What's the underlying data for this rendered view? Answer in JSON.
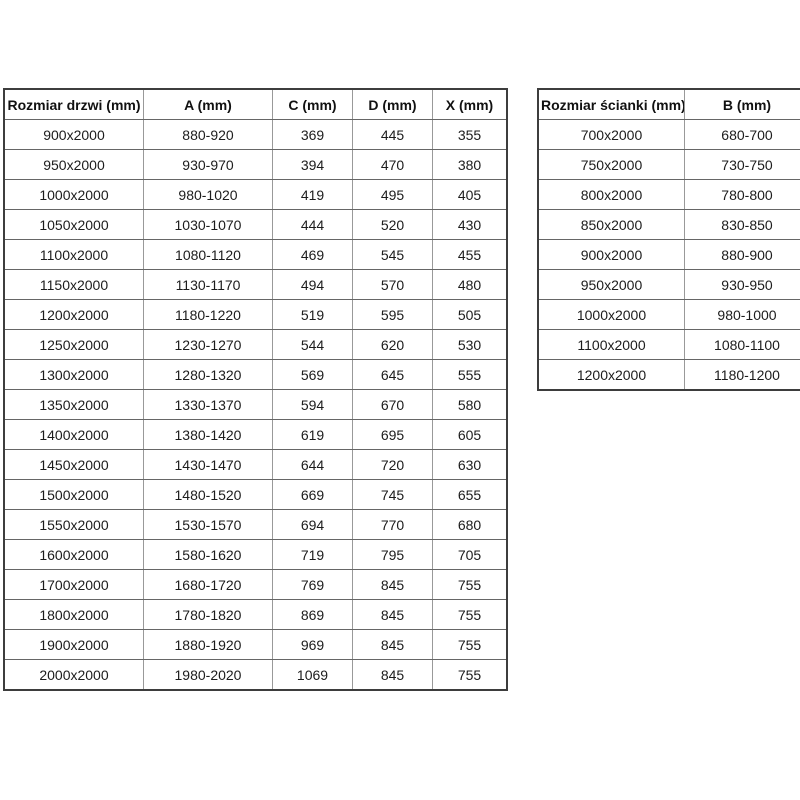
{
  "page": {
    "background_color": "#ffffff",
    "text_color": "#1a1a1a",
    "outer_border_color": "#3d3d3d",
    "inner_border_color": "#808080"
  },
  "door_table": {
    "headers": [
      "Rozmiar drzwi (mm)",
      "A (mm)",
      "C (mm)",
      "D (mm)",
      "X (mm)"
    ],
    "rows": [
      [
        "900x2000",
        "880-920",
        "369",
        "445",
        "355"
      ],
      [
        "950x2000",
        "930-970",
        "394",
        "470",
        "380"
      ],
      [
        "1000x2000",
        "980-1020",
        "419",
        "495",
        "405"
      ],
      [
        "1050x2000",
        "1030-1070",
        "444",
        "520",
        "430"
      ],
      [
        "1100x2000",
        "1080-1120",
        "469",
        "545",
        "455"
      ],
      [
        "1150x2000",
        "1130-1170",
        "494",
        "570",
        "480"
      ],
      [
        "1200x2000",
        "1180-1220",
        "519",
        "595",
        "505"
      ],
      [
        "1250x2000",
        "1230-1270",
        "544",
        "620",
        "530"
      ],
      [
        "1300x2000",
        "1280-1320",
        "569",
        "645",
        "555"
      ],
      [
        "1350x2000",
        "1330-1370",
        "594",
        "670",
        "580"
      ],
      [
        "1400x2000",
        "1380-1420",
        "619",
        "695",
        "605"
      ],
      [
        "1450x2000",
        "1430-1470",
        "644",
        "720",
        "630"
      ],
      [
        "1500x2000",
        "1480-1520",
        "669",
        "745",
        "655"
      ],
      [
        "1550x2000",
        "1530-1570",
        "694",
        "770",
        "680"
      ],
      [
        "1600x2000",
        "1580-1620",
        "719",
        "795",
        "705"
      ],
      [
        "1700x2000",
        "1680-1720",
        "769",
        "845",
        "755"
      ],
      [
        "1800x2000",
        "1780-1820",
        "869",
        "845",
        "755"
      ],
      [
        "1900x2000",
        "1880-1920",
        "969",
        "845",
        "755"
      ],
      [
        "2000x2000",
        "1980-2020",
        "1069",
        "845",
        "755"
      ]
    ]
  },
  "wall_table": {
    "headers": [
      "Rozmiar ścianki (mm)",
      "B (mm)"
    ],
    "rows": [
      [
        "700x2000",
        "680-700"
      ],
      [
        "750x2000",
        "730-750"
      ],
      [
        "800x2000",
        "780-800"
      ],
      [
        "850x2000",
        "830-850"
      ],
      [
        "900x2000",
        "880-900"
      ],
      [
        "950x2000",
        "930-950"
      ],
      [
        "1000x2000",
        "980-1000"
      ],
      [
        "1100x2000",
        "1080-1100"
      ],
      [
        "1200x2000",
        "1180-1200"
      ]
    ]
  }
}
